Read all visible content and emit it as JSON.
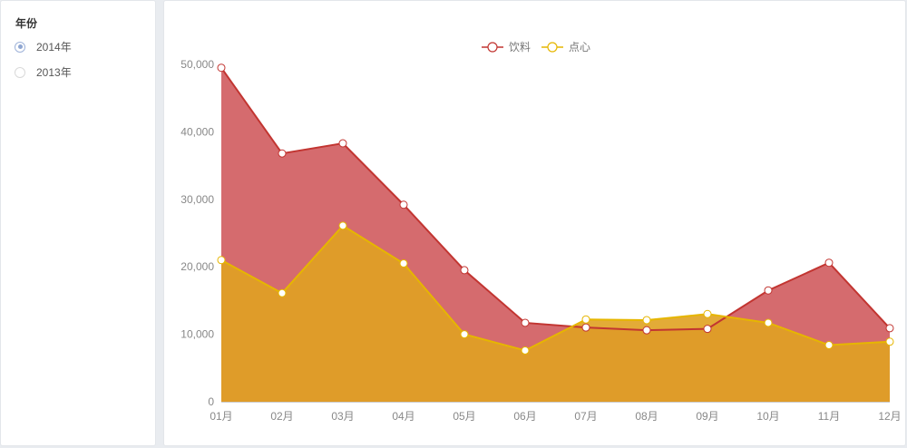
{
  "sidebar": {
    "title": "年份",
    "options": [
      {
        "label": "2014年",
        "checked": true
      },
      {
        "label": "2013年",
        "checked": false
      }
    ]
  },
  "chart_data": {
    "type": "area",
    "categories": [
      "01月",
      "02月",
      "03月",
      "04月",
      "05月",
      "06月",
      "07月",
      "08月",
      "09月",
      "10月",
      "11月",
      "12月"
    ],
    "series": [
      {
        "name": "饮料",
        "color": "#c23531",
        "fill": "#d56b6e",
        "values": [
          49500,
          36800,
          38300,
          29200,
          19500,
          11700,
          11000,
          10600,
          10800,
          16500,
          20600,
          10900
        ]
      },
      {
        "name": "点心",
        "color": "#e6b600",
        "fill": "#e0a221",
        "values": [
          21000,
          16100,
          26100,
          20500,
          10000,
          7600,
          12200,
          12100,
          13000,
          11700,
          8400,
          8900
        ]
      }
    ],
    "ylim": [
      0,
      50000
    ],
    "yticks": [
      "0",
      "10,000",
      "20,000",
      "30,000",
      "40,000",
      "50,000"
    ],
    "legend": "top-center"
  }
}
